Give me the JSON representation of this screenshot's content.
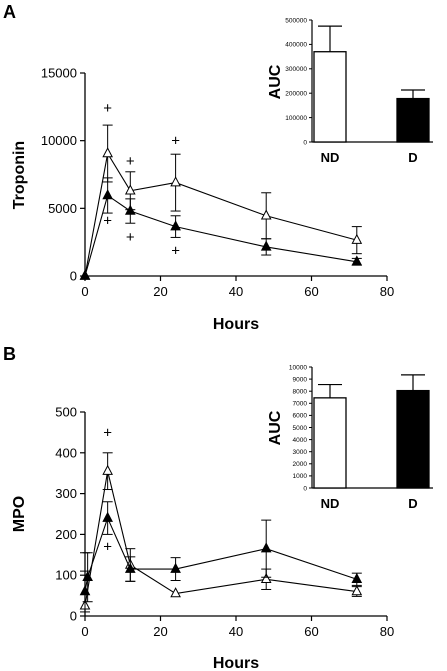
{
  "chart_data": [
    {
      "panel_label": "A",
      "type": "line",
      "xlabel": "Hours",
      "ylabel": "Troponin",
      "xlim": [
        0,
        80
      ],
      "ylim": [
        0,
        15000
      ],
      "xticks": [
        "0",
        "20",
        "40",
        "60",
        "80"
      ],
      "yticks": [
        "0",
        "5000",
        "10000",
        "15000"
      ],
      "series": [
        {
          "marker": "open-triangle",
          "x": [
            0,
            6,
            12,
            24,
            48,
            72
          ],
          "y": [
            0,
            9050,
            6300,
            6900,
            4450,
            2650
          ],
          "err": [
            0,
            2100,
            1400,
            2100,
            1700,
            1000
          ]
        },
        {
          "marker": "filled-triangle",
          "x": [
            0,
            6,
            12,
            24,
            48,
            72
          ],
          "y": [
            0,
            5950,
            4800,
            3650,
            2150,
            1050
          ],
          "err": [
            0,
            1300,
            900,
            800,
            600,
            250
          ]
        }
      ],
      "annotations": [
        {
          "text": "+",
          "x": 6,
          "y": 12400
        },
        {
          "text": "+",
          "x": 6,
          "y": 4100
        },
        {
          "text": "+",
          "x": 12,
          "y": 8500
        },
        {
          "text": "+",
          "x": 12,
          "y": 2900
        },
        {
          "text": "+",
          "x": 24,
          "y": 10000
        },
        {
          "text": "+",
          "x": 24,
          "y": 1900
        }
      ],
      "inset": {
        "type": "bar",
        "ylabel": "AUC",
        "ylim": [
          0,
          500000
        ],
        "yticks": [
          "0",
          "100000",
          "200000",
          "300000",
          "400000",
          "500000"
        ],
        "categories": [
          "ND",
          "D"
        ],
        "values": [
          370000,
          178000
        ],
        "err": [
          105000,
          35000
        ],
        "fills": [
          "#ffffff",
          "#000000"
        ]
      }
    },
    {
      "panel_label": "B",
      "type": "line",
      "xlabel": "Hours",
      "ylabel": "MPO",
      "xlim": [
        0,
        80
      ],
      "ylim": [
        0,
        500
      ],
      "xticks": [
        "0",
        "20",
        "40",
        "60",
        "80"
      ],
      "yticks": [
        "0",
        "100",
        "200",
        "300",
        "400",
        "500"
      ],
      "series": [
        {
          "marker": "open-triangle",
          "x": [
            0,
            6,
            12,
            24,
            48,
            72
          ],
          "y": [
            25,
            355,
            125,
            55,
            90,
            60
          ],
          "err": [
            130,
            45,
            40,
            0,
            25,
            12
          ]
        },
        {
          "marker": "filled-triangle",
          "x": [
            0,
            0.7,
            6,
            12,
            24,
            48,
            72
          ],
          "y": [
            60,
            95,
            240,
            115,
            115,
            165,
            90
          ],
          "err": [
            50,
            60,
            40,
            30,
            28,
            70,
            15
          ]
        }
      ],
      "annotations": [
        {
          "text": "+",
          "x": 6,
          "y": 450
        },
        {
          "text": "+",
          "x": 6,
          "y": 170
        }
      ],
      "inset": {
        "type": "bar",
        "ylabel": "AUC",
        "ylim": [
          0,
          10000
        ],
        "yticks": [
          "0",
          "1000",
          "2000",
          "3000",
          "4000",
          "5000",
          "6000",
          "7000",
          "8000",
          "9000",
          "10000"
        ],
        "categories": [
          "ND",
          "D"
        ],
        "values": [
          7450,
          8050
        ],
        "err": [
          1100,
          1300
        ],
        "fills": [
          "#ffffff",
          "#000000"
        ]
      }
    }
  ]
}
